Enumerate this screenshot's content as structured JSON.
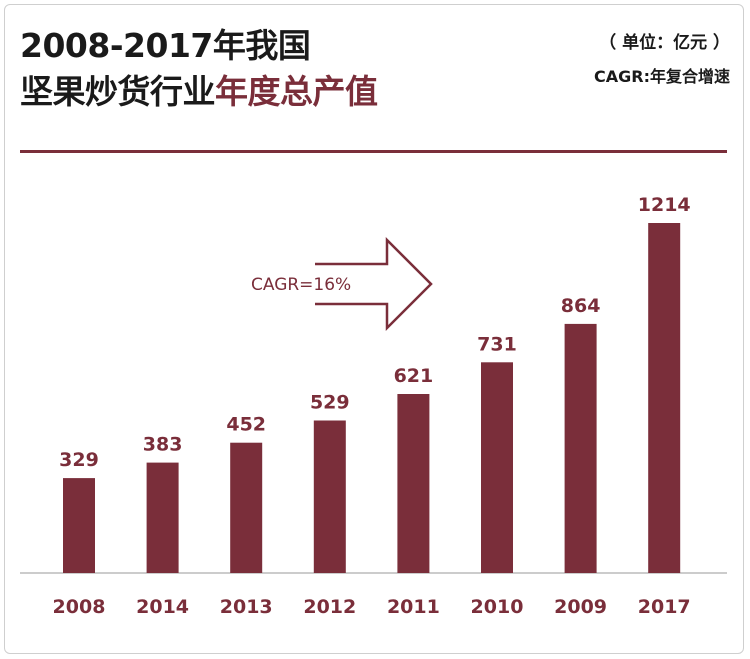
{
  "header": {
    "title_line1": "2008-2017年我国",
    "title_line2_main": "坚果炒货行业",
    "title_line2_accent": "年度总产值",
    "unit": "（ 单位：亿元 ）",
    "cagr_note": "CAGR:年复合增速"
  },
  "colors": {
    "bar": "#7a2e3a",
    "text": "#1a1a1a",
    "baseline": "#bbbbbb"
  },
  "chart_data": {
    "type": "bar",
    "title": "2008-2017年我国坚果炒货行业年度总产值",
    "unit": "亿元",
    "categories": [
      "2008",
      "2014",
      "2013",
      "2012",
      "2011",
      "2010",
      "2009",
      "2017"
    ],
    "values": [
      329,
      383,
      452,
      529,
      621,
      731,
      864,
      1214
    ],
    "annotation": "CAGR=16%",
    "grid": false,
    "legend": "none"
  }
}
